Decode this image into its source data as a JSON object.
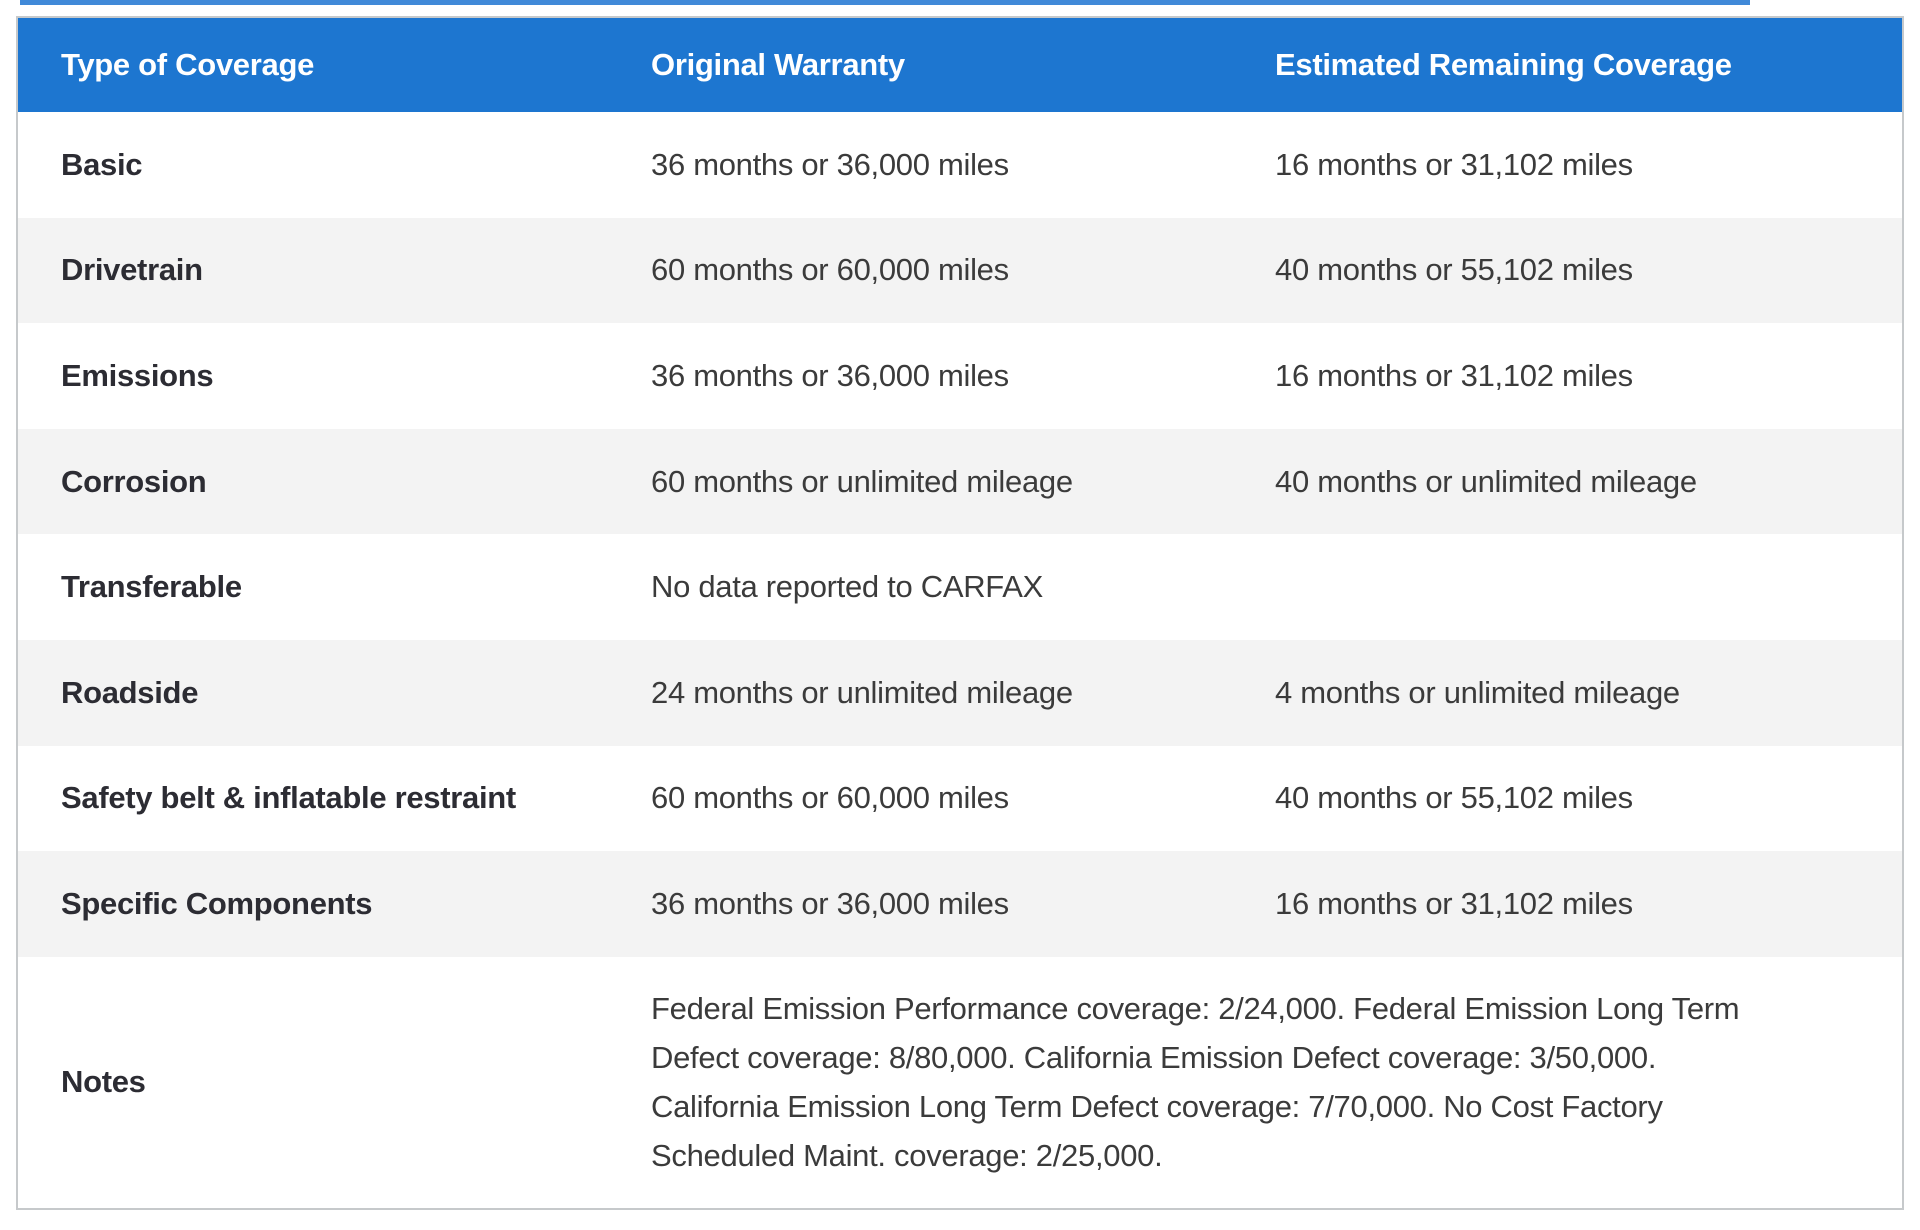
{
  "accent_color": "#2b7cd4",
  "table": {
    "colors": {
      "header_bg": "#1d76d0",
      "header_text": "#ffffff",
      "row_alt_bg": "#f3f3f3",
      "border": "#c6c9cb",
      "label_text": "#2c2c33",
      "value_text": "#3b3b3b"
    },
    "columns": [
      "Type of Coverage",
      "Original Warranty",
      "Estimated Remaining Coverage"
    ],
    "rows": [
      {
        "label": "Basic",
        "original": "36 months or 36,000 miles",
        "remaining": "16 months or 31,102 miles"
      },
      {
        "label": "Drivetrain",
        "original": "60 months or 60,000 miles",
        "remaining": "40 months or 55,102 miles"
      },
      {
        "label": "Emissions",
        "original": "36 months or 36,000 miles",
        "remaining": "16 months or 31,102 miles"
      },
      {
        "label": "Corrosion",
        "original": "60 months or unlimited mileage",
        "remaining": "40 months or unlimited mileage"
      },
      {
        "label": "Transferable",
        "original": "No data reported to CARFAX",
        "remaining": ""
      },
      {
        "label": "Roadside",
        "original": "24 months or unlimited mileage",
        "remaining": "4 months or unlimited mileage"
      },
      {
        "label": "Safety belt & inflatable restraint",
        "original": "60 months or 60,000 miles",
        "remaining": "40 months or 55,102 miles"
      },
      {
        "label": "Specific Components",
        "original": "36 months or 36,000 miles",
        "remaining": "16 months or 31,102 miles"
      },
      {
        "label": "Notes",
        "note": "Federal Emission Performance coverage: 2/24,000. Federal Emission Long Term Defect coverage: 8/80,000. California Emission Defect coverage: 3/50,000. California Emission Long Term Defect coverage: 7/70,000. No Cost Factory Scheduled Maint. coverage: 2/25,000."
      }
    ]
  }
}
